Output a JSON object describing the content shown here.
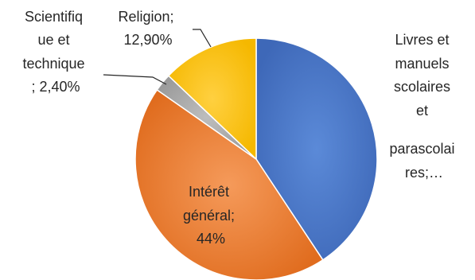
{
  "chart_data": {
    "type": "pie",
    "title": "",
    "slices": [
      {
        "label": "Livres et manuels scolaires et parascolaires",
        "value": 40.7,
        "display_lines": [
          "Livres et",
          "manuels",
          "scolaires",
          "et",
          "parascolai",
          "res;…"
        ],
        "color": "#4472c4"
      },
      {
        "label": "Intérêt général",
        "value": 44,
        "display_lines": [
          "Intérêt",
          "général;",
          "44%"
        ],
        "color": "#ed7d31"
      },
      {
        "label": "Scientifique et technique",
        "value": 2.4,
        "display_lines": [
          "Scientifiq",
          "ue et",
          "technique",
          "; 2,40%"
        ],
        "color": "#a5a5a5"
      },
      {
        "label": "Religion",
        "value": 12.9,
        "display_lines": [
          "Religion;",
          "12,90%"
        ],
        "color": "#ffc000"
      }
    ]
  }
}
